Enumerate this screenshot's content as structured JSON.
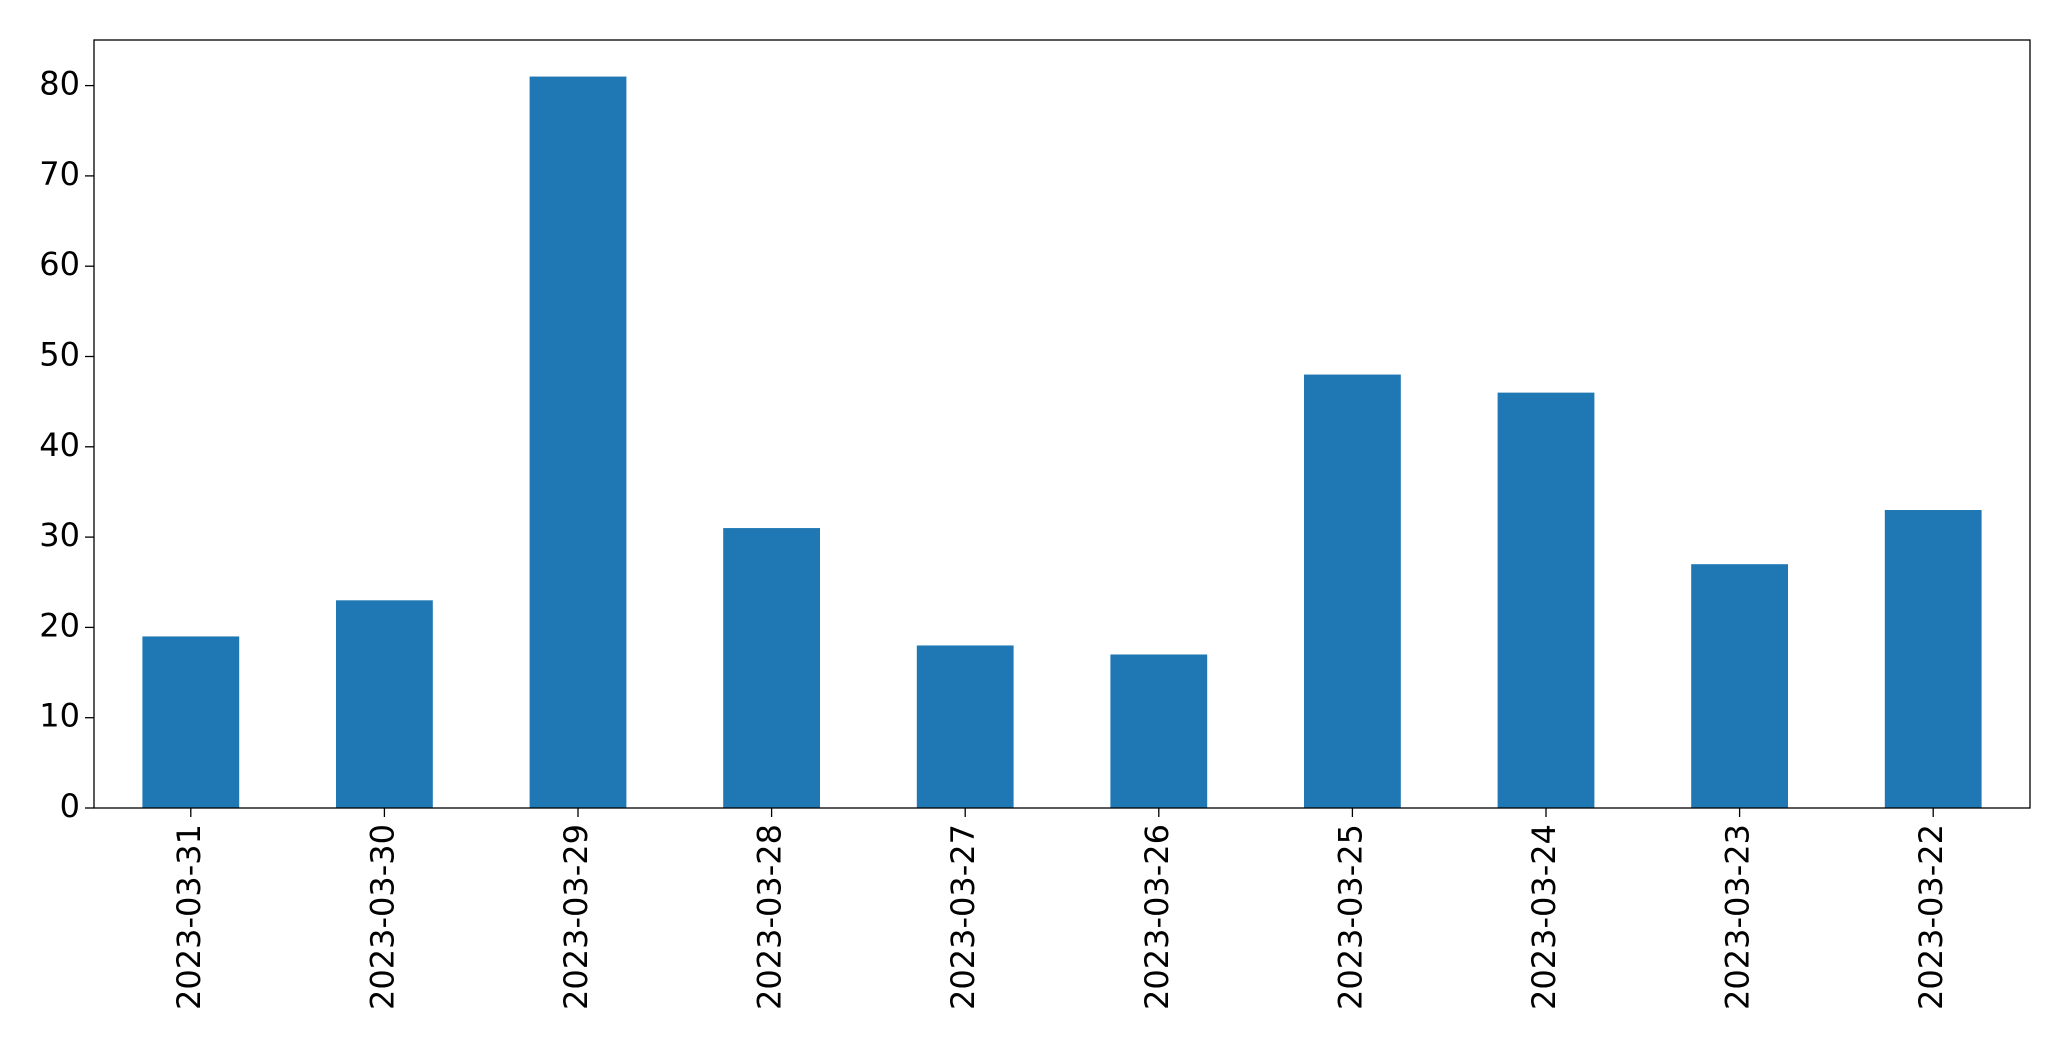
{
  "chart_data": {
    "type": "bar",
    "categories": [
      "2023-03-31",
      "2023-03-30",
      "2023-03-29",
      "2023-03-28",
      "2023-03-27",
      "2023-03-26",
      "2023-03-25",
      "2023-03-24",
      "2023-03-23",
      "2023-03-22"
    ],
    "values": [
      19,
      23,
      81,
      31,
      18,
      17,
      48,
      46,
      27,
      33
    ],
    "color": "#1f77b4",
    "ylim": [
      0,
      85.05
    ],
    "yticks": [
      0,
      10,
      20,
      30,
      40,
      50,
      60,
      70,
      80
    ],
    "grid": false
  }
}
